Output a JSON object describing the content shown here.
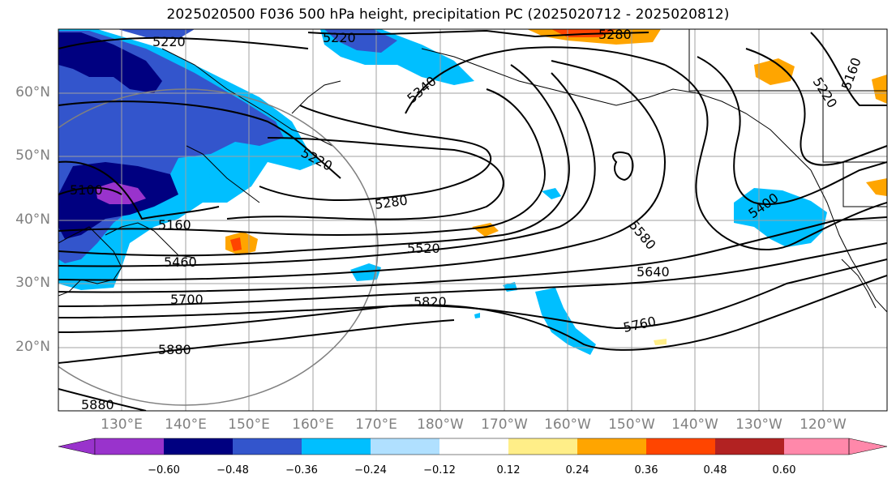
{
  "title": "2025020500 F036 500 hPa height, precipitation PC (2025020712 - 2025020812)",
  "lat_labels": [
    "60°N",
    "50°N",
    "40°N",
    "30°N",
    "20°N"
  ],
  "lon_labels": [
    "130°E",
    "140°E",
    "150°E",
    "160°E",
    "170°E",
    "180°W",
    "170°W",
    "160°W",
    "150°W",
    "140°W",
    "130°W",
    "120°W"
  ],
  "contour_labels": [
    "5220",
    "5220",
    "5280",
    "5340",
    "5220",
    "5160",
    "5100",
    "5280",
    "5160",
    "5460",
    "5520",
    "5700",
    "5820",
    "5880",
    "5880",
    "5580",
    "5640",
    "5760",
    "5400",
    "5220",
    "5160"
  ],
  "colorbar": {
    "ticks": [
      "−0.60",
      "−0.48",
      "−0.36",
      "−0.24",
      "−0.12",
      "0.12",
      "0.24",
      "0.36",
      "0.48",
      "0.60"
    ],
    "colors": [
      "#9933cc",
      "#000080",
      "#3355cc",
      "#00bfff",
      "#b0e0ff",
      "#ffffff",
      "#ffee88",
      "#ffa500",
      "#ff4500",
      "#b22222",
      "#ff88aa"
    ]
  },
  "colors": {
    "very_negative": "#9933cc",
    "strong_negative": "#000080",
    "moderate_negative": "#3355cc",
    "negative": "#00bfff",
    "weak_negative": "#b0e0ff",
    "weak_positive": "#ffee88",
    "positive": "#ffa500",
    "strong_positive": "#ff4500",
    "very_positive": "#b22222"
  }
}
